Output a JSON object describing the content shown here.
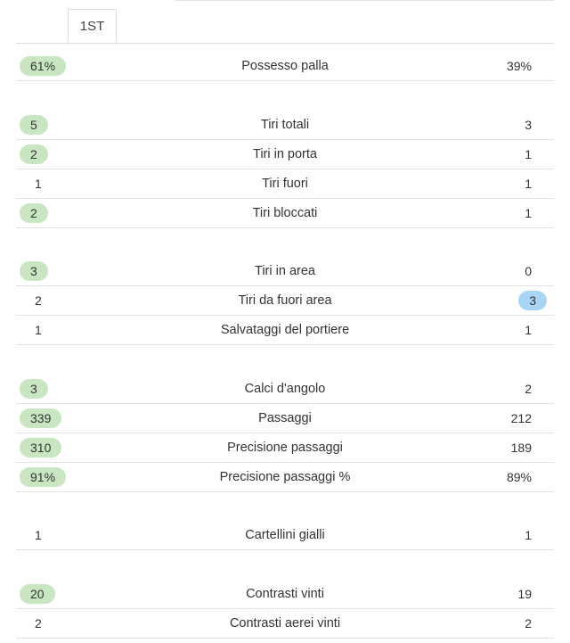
{
  "tabs": [
    {
      "label": "1ST",
      "active": true
    }
  ],
  "colors": {
    "home_highlight": "#c8e6c1",
    "away_highlight": "#a9d5f5"
  },
  "stats": [
    {
      "label": "Possesso palla",
      "home": "61%",
      "away": "39%",
      "leader": "home"
    },
    {
      "label": "Tiri totali",
      "home": "5",
      "away": "3",
      "leader": "home"
    },
    {
      "label": "Tiri in porta",
      "home": "2",
      "away": "1",
      "leader": "home"
    },
    {
      "label": "Tiri fuori",
      "home": "1",
      "away": "1",
      "leader": "none"
    },
    {
      "label": "Tiri bloccati",
      "home": "2",
      "away": "1",
      "leader": "home"
    },
    {
      "label": "Tiri in area",
      "home": "3",
      "away": "0",
      "leader": "home"
    },
    {
      "label": "Tiri da fuori area",
      "home": "2",
      "away": "3",
      "leader": "away"
    },
    {
      "label": "Salvataggi del portiere",
      "home": "1",
      "away": "1",
      "leader": "none"
    },
    {
      "label": "Calci d'angolo",
      "home": "3",
      "away": "2",
      "leader": "home"
    },
    {
      "label": "Passaggi",
      "home": "339",
      "away": "212",
      "leader": "home"
    },
    {
      "label": "Precisione passaggi",
      "home": "310",
      "away": "189",
      "leader": "home"
    },
    {
      "label": "Precisione passaggi %",
      "home": "91%",
      "away": "89%",
      "leader": "home"
    },
    {
      "label": "Cartellini gialli",
      "home": "1",
      "away": "1",
      "leader": "none"
    },
    {
      "label": "Contrasti vinti",
      "home": "20",
      "away": "19",
      "leader": "home"
    },
    {
      "label": "Contrasti aerei vinti",
      "home": "2",
      "away": "2",
      "leader": "none"
    }
  ]
}
